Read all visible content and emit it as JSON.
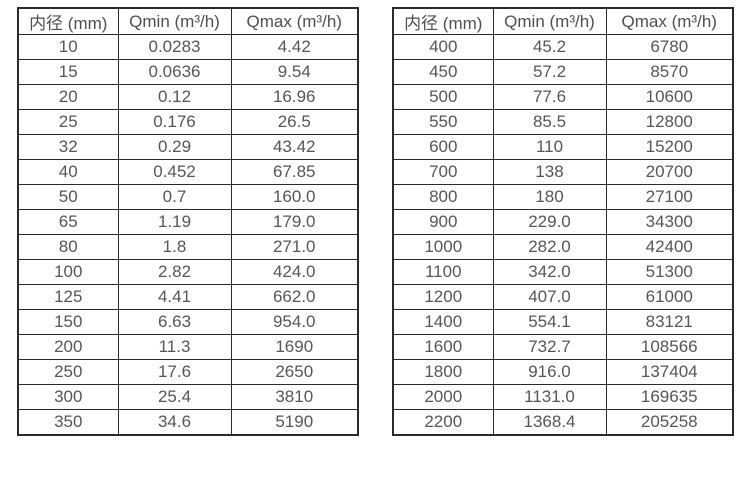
{
  "table_left": {
    "headers": [
      "内径 (mm)",
      "Qmin (m³/h)",
      "Qmax (m³/h)"
    ],
    "rows": [
      [
        "10",
        "0.0283",
        "4.42"
      ],
      [
        "15",
        "0.0636",
        "9.54"
      ],
      [
        "20",
        "0.12",
        "16.96"
      ],
      [
        "25",
        "0.176",
        "26.5"
      ],
      [
        "32",
        "0.29",
        "43.42"
      ],
      [
        "40",
        "0.452",
        "67.85"
      ],
      [
        "50",
        "0.7",
        "160.0"
      ],
      [
        "65",
        "1.19",
        "179.0"
      ],
      [
        "80",
        "1.8",
        "271.0"
      ],
      [
        "100",
        "2.82",
        "424.0"
      ],
      [
        "125",
        "4.41",
        "662.0"
      ],
      [
        "150",
        "6.63",
        "954.0"
      ],
      [
        "200",
        "11.3",
        "1690"
      ],
      [
        "250",
        "17.6",
        "2650"
      ],
      [
        "300",
        "25.4",
        "3810"
      ],
      [
        "350",
        "34.6",
        "5190"
      ]
    ]
  },
  "table_right": {
    "headers": [
      "内径 (mm)",
      "Qmin (m³/h)",
      "Qmax (m³/h)"
    ],
    "rows": [
      [
        "400",
        "45.2",
        "6780"
      ],
      [
        "450",
        "57.2",
        "8570"
      ],
      [
        "500",
        "77.6",
        "10600"
      ],
      [
        "550",
        "85.5",
        "12800"
      ],
      [
        "600",
        "110",
        "15200"
      ],
      [
        "700",
        "138",
        "20700"
      ],
      [
        "800",
        "180",
        "27100"
      ],
      [
        "900",
        "229.0",
        "34300"
      ],
      [
        "1000",
        "282.0",
        "42400"
      ],
      [
        "1100",
        "342.0",
        "51300"
      ],
      [
        "1200",
        "407.0",
        "61000"
      ],
      [
        "1400",
        "554.1",
        "83121"
      ],
      [
        "1600",
        "732.7",
        "108566"
      ],
      [
        "1800",
        "916.0",
        "137404"
      ],
      [
        "2000",
        "1131.0",
        "169635"
      ],
      [
        "2200",
        "1368.4",
        "205258"
      ]
    ]
  }
}
